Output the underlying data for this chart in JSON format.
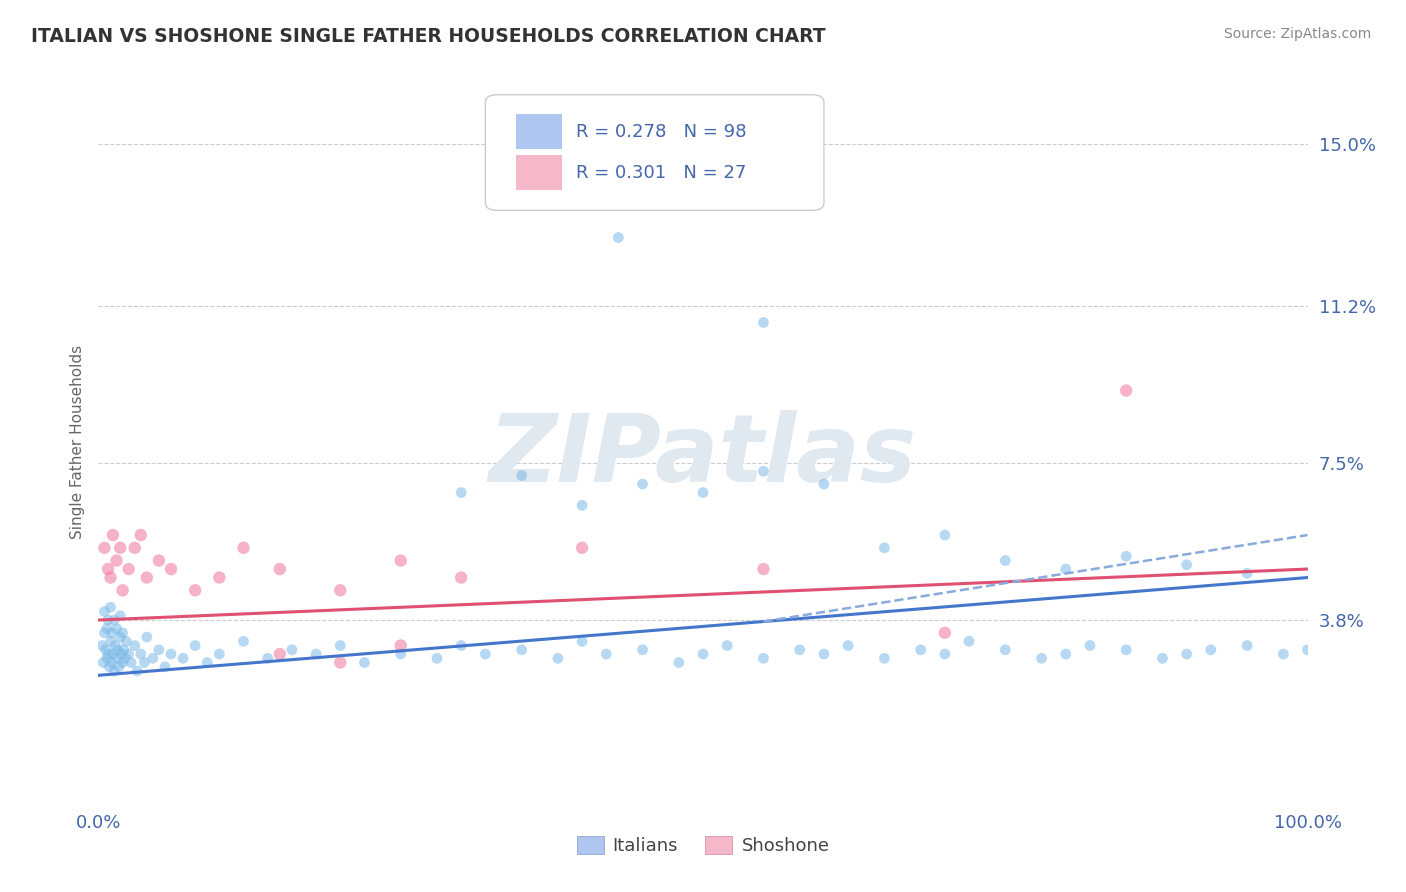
{
  "title": "ITALIAN VS SHOSHONE SINGLE FATHER HOUSEHOLDS CORRELATION CHART",
  "source": "Source: ZipAtlas.com",
  "ylabel": "Single Father Households",
  "xlim": [
    0,
    100
  ],
  "ylim": [
    -0.5,
    16.5
  ],
  "yticks": [
    3.8,
    7.5,
    11.2,
    15.0
  ],
  "xticks": [
    0,
    100
  ],
  "xticklabels": [
    "0.0%",
    "100.0%"
  ],
  "watermark_text": "ZIPatlas",
  "italian_color": "#7ab8e8",
  "shoshone_color": "#f080a0",
  "trend_italian_color": "#4477cc",
  "trend_shoshone_color": "#e05070",
  "trend_dashed_color": "#88aadd",
  "background_color": "#ffffff",
  "grid_color": "#cccccc",
  "title_color": "#333333",
  "axis_label_color": "#4466aa",
  "tick_label_color": "#4466aa",
  "legend_label_color": "#333333",
  "legend_r_color": "#4466aa",
  "italian_x": [
    0.3,
    0.4,
    0.5,
    0.5,
    0.6,
    0.7,
    0.7,
    0.8,
    0.8,
    0.9,
    1.0,
    1.0,
    1.1,
    1.1,
    1.2,
    1.3,
    1.3,
    1.4,
    1.5,
    1.5,
    1.6,
    1.7,
    1.8,
    1.8,
    1.9,
    2.0,
    2.0,
    2.1,
    2.2,
    2.3,
    2.5,
    2.7,
    3.0,
    3.2,
    3.5,
    3.8,
    4.0,
    4.5,
    5.0,
    5.5,
    6.0,
    7.0,
    8.0,
    9.0,
    10.0,
    12.0,
    14.0,
    16.0,
    18.0,
    20.0,
    22.0,
    25.0,
    28.0,
    30.0,
    32.0,
    35.0,
    38.0,
    40.0,
    42.0,
    45.0,
    48.0,
    50.0,
    52.0,
    55.0,
    58.0,
    60.0,
    62.0,
    65.0,
    68.0,
    70.0,
    72.0,
    75.0,
    78.0,
    80.0,
    82.0,
    85.0,
    88.0,
    90.0,
    92.0,
    95.0,
    98.0,
    100.0,
    43.0,
    55.0,
    30.0,
    35.0,
    40.0,
    45.0,
    50.0,
    55.0,
    60.0,
    65.0,
    70.0,
    75.0,
    80.0,
    85.0,
    90.0,
    95.0
  ],
  "italian_y": [
    3.2,
    2.8,
    3.5,
    4.0,
    3.1,
    2.9,
    3.6,
    3.0,
    3.8,
    2.7,
    3.3,
    4.1,
    2.8,
    3.5,
    3.0,
    2.6,
    3.8,
    3.2,
    2.9,
    3.6,
    3.1,
    2.7,
    3.4,
    3.9,
    3.0,
    2.8,
    3.5,
    3.1,
    2.9,
    3.3,
    3.0,
    2.8,
    3.2,
    2.6,
    3.0,
    2.8,
    3.4,
    2.9,
    3.1,
    2.7,
    3.0,
    2.9,
    3.2,
    2.8,
    3.0,
    3.3,
    2.9,
    3.1,
    3.0,
    3.2,
    2.8,
    3.0,
    2.9,
    3.2,
    3.0,
    3.1,
    2.9,
    3.3,
    3.0,
    3.1,
    2.8,
    3.0,
    3.2,
    2.9,
    3.1,
    3.0,
    3.2,
    2.9,
    3.1,
    3.0,
    3.3,
    3.1,
    2.9,
    3.0,
    3.2,
    3.1,
    2.9,
    3.0,
    3.1,
    3.2,
    3.0,
    3.1,
    12.8,
    10.8,
    6.8,
    7.2,
    6.5,
    7.0,
    6.8,
    7.3,
    7.0,
    5.5,
    5.8,
    5.2,
    5.0,
    5.3,
    5.1,
    4.9
  ],
  "shoshone_x": [
    0.5,
    0.8,
    1.0,
    1.2,
    1.5,
    1.8,
    2.0,
    2.5,
    3.0,
    3.5,
    4.0,
    5.0,
    6.0,
    8.0,
    10.0,
    12.0,
    15.0,
    20.0,
    25.0,
    30.0,
    40.0,
    55.0,
    70.0,
    85.0,
    15.0,
    20.0,
    25.0
  ],
  "shoshone_y": [
    5.5,
    5.0,
    4.8,
    5.8,
    5.2,
    5.5,
    4.5,
    5.0,
    5.5,
    5.8,
    4.8,
    5.2,
    5.0,
    4.5,
    4.8,
    5.5,
    5.0,
    4.5,
    5.2,
    4.8,
    5.5,
    5.0,
    3.5,
    9.2,
    3.0,
    2.8,
    3.2
  ],
  "it_trend_x0": 0,
  "it_trend_y0": 2.5,
  "it_trend_x1": 100,
  "it_trend_y1": 4.8,
  "sh_trend_x0": 0,
  "sh_trend_y0": 3.8,
  "sh_trend_x1": 100,
  "sh_trend_y1": 5.0,
  "it_dashed_x0": 60,
  "it_dashed_x1": 100,
  "legend_blue_label": "R = 0.278   N = 98",
  "legend_pink_label": "R = 0.301   N = 27",
  "bottom_legend_italians": "Italians",
  "bottom_legend_shoshone": "Shoshone"
}
